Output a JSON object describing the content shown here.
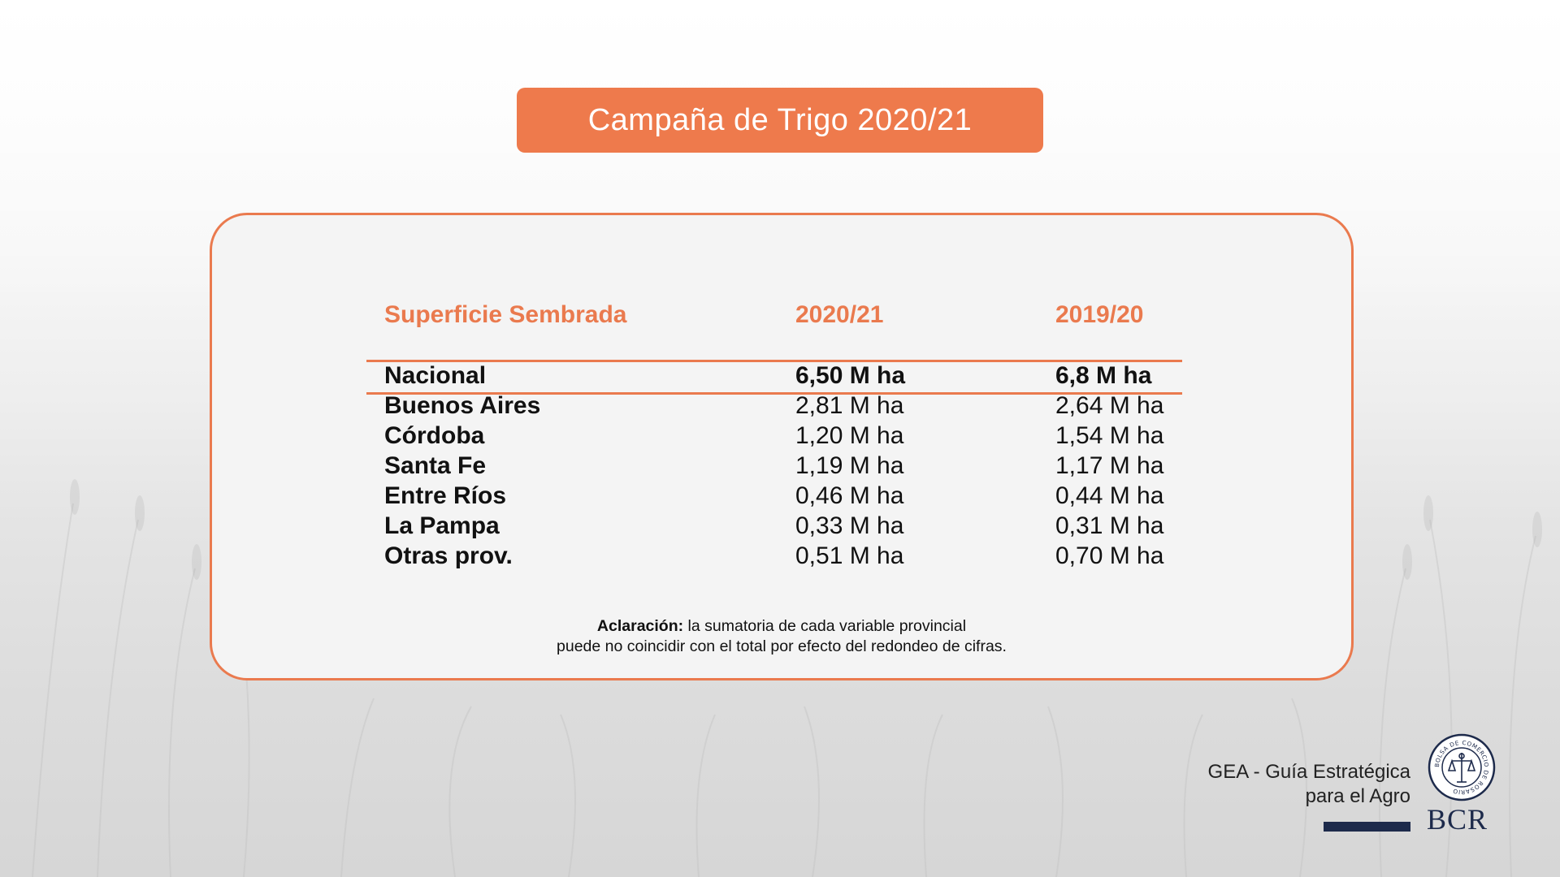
{
  "title": "Campaña de Trigo 2020/21",
  "table": {
    "headers": [
      "Superficie Sembrada",
      "2020/21",
      "2019/20"
    ],
    "rows": [
      [
        "Nacional",
        "6,50 M ha",
        "6,8 M ha"
      ],
      [
        "Buenos Aires",
        "2,81 M ha",
        "2,64 M ha"
      ],
      [
        "Córdoba",
        "1,20 M ha",
        "1,54 M ha"
      ],
      [
        "Santa Fe",
        "1,19 M ha",
        "1,17 M ha"
      ],
      [
        "Entre Ríos",
        "0,46 M ha",
        "0,44 M ha"
      ],
      [
        "La Pampa",
        "0,33 M ha",
        "0,31 M ha"
      ],
      [
        "Otras prov.",
        "0,51 M ha",
        "0,70 M ha"
      ]
    ]
  },
  "note": {
    "label": "Aclaración:",
    "line1": " la sumatoria de cada variable provincial",
    "line2": "puede no coincidir con el total por efecto del redondeo de cifras."
  },
  "footer": {
    "line1": "GEA - Guía Estratégica",
    "line2": "para el Agro",
    "logo_text": "BCR",
    "seal_text": "BOLSA DE COMERCIO DE ROSARIO"
  },
  "colors": {
    "accent": "#ea7a4e",
    "navy": "#1d2a4b"
  },
  "icons": {
    "seal": "bcr-seal-icon"
  }
}
